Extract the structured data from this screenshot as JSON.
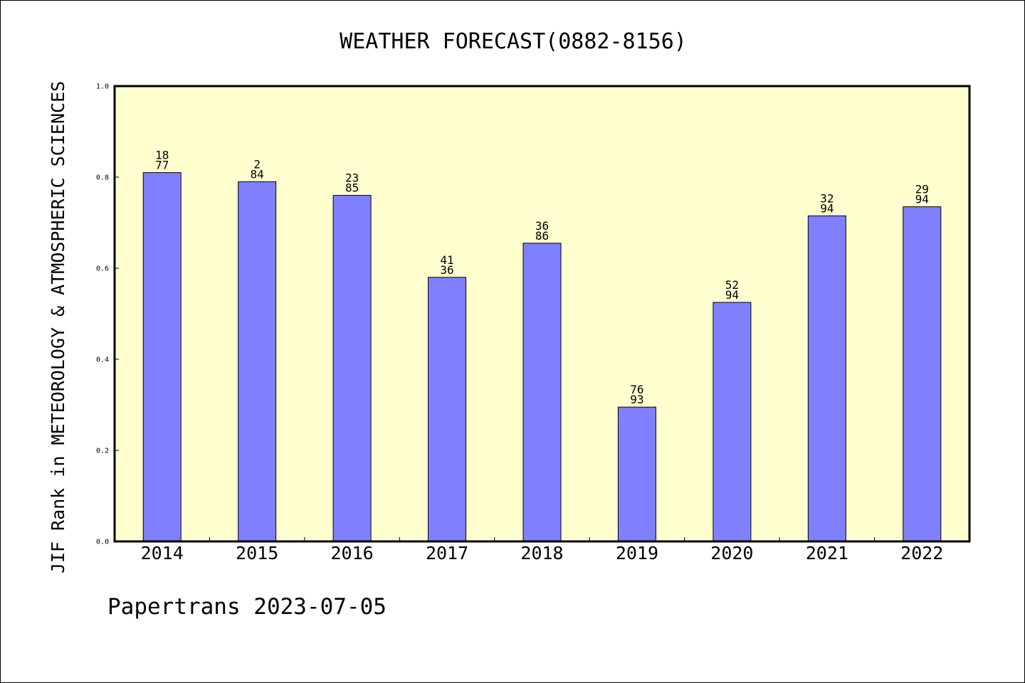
{
  "chart_data": {
    "type": "bar",
    "title": "WEATHER FORECAST(0882-8156)",
    "xlabel": "",
    "ylabel": "JIF Rank in METEOROLOGY & ATMOSPHERIC SCIENCES",
    "categories": [
      "2014",
      "2015",
      "2016",
      "2017",
      "2018",
      "2019",
      "2020",
      "2021",
      "2022"
    ],
    "values": [
      0.81,
      0.79,
      0.76,
      0.58,
      0.655,
      0.295,
      0.525,
      0.715,
      0.735
    ],
    "labels_top": [
      "18",
      "2",
      "23",
      "41",
      "36",
      "76",
      "52",
      "32",
      "29"
    ],
    "labels_bottom": [
      "77",
      "84",
      "85",
      "36",
      "86",
      "93",
      "94",
      "94",
      "94"
    ],
    "ylim": [
      0,
      1.0
    ],
    "yticks": [
      "0.0",
      "0.2",
      "0.4",
      "0.6",
      "0.8",
      "1.0"
    ],
    "grid": false,
    "legend": "none",
    "colors": {
      "bar_fill": "#8080ff",
      "plot_background": "#ffffd0",
      "axis": "#000000"
    }
  },
  "footer": {
    "text": "Papertrans 2023-07-05"
  }
}
